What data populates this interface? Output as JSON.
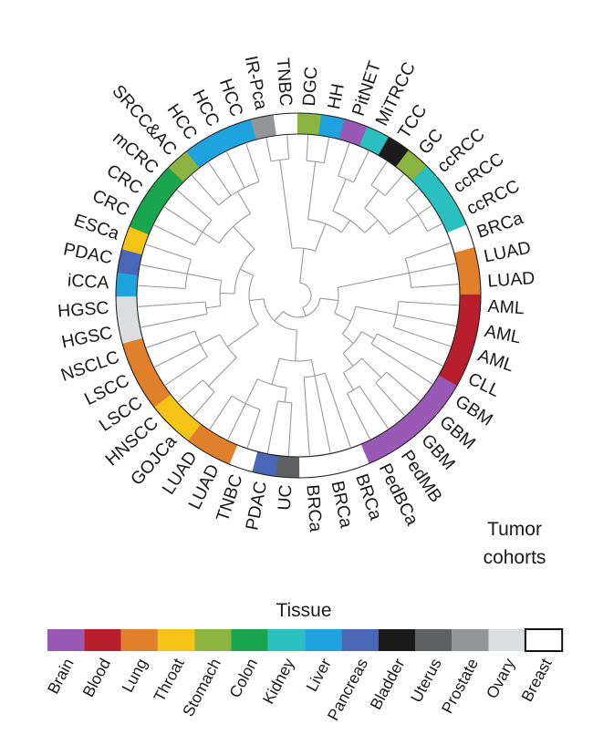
{
  "tissue_legend": {
    "title": "Tissue",
    "items": [
      {
        "name": "Brain",
        "color": "#9b59b6"
      },
      {
        "name": "Blood",
        "color": "#b81d2b"
      },
      {
        "name": "Lung",
        "color": "#e0802a"
      },
      {
        "name": "Throat",
        "color": "#f6c416"
      },
      {
        "name": "Stomach",
        "color": "#8cb440"
      },
      {
        "name": "Colon",
        "color": "#1aa64e"
      },
      {
        "name": "Kidney",
        "color": "#2bbfbf"
      },
      {
        "name": "Liver",
        "color": "#1ea3df"
      },
      {
        "name": "Pancreas",
        "color": "#4a66b6"
      },
      {
        "name": "Bladder",
        "color": "#1b1b1b"
      },
      {
        "name": "Uterus",
        "color": "#5f6062"
      },
      {
        "name": "Prostate",
        "color": "#939598"
      },
      {
        "name": "Ovary",
        "color": "#dcdddf"
      },
      {
        "name": "Breast",
        "color": "#ffffff"
      }
    ]
  },
  "ring_caption": [
    "Tumor",
    "cohorts"
  ],
  "cohorts": [
    {
      "label": "IR-Pca",
      "tissue": "Prostate"
    },
    {
      "label": "TNBC",
      "tissue": "Breast"
    },
    {
      "label": "DGC",
      "tissue": "Stomach"
    },
    {
      "label": "HH",
      "tissue": "Liver"
    },
    {
      "label": "PitNET",
      "tissue": "Brain"
    },
    {
      "label": "MiTRCC",
      "tissue": "Kidney"
    },
    {
      "label": "TCC",
      "tissue": "Bladder"
    },
    {
      "label": "GC",
      "tissue": "Stomach"
    },
    {
      "label": "ccRCC",
      "tissue": "Kidney"
    },
    {
      "label": "ccRCC",
      "tissue": "Kidney"
    },
    {
      "label": "ccRCC",
      "tissue": "Kidney"
    },
    {
      "label": "BRCa",
      "tissue": "Breast"
    },
    {
      "label": "LUAD",
      "tissue": "Lung"
    },
    {
      "label": "LUAD",
      "tissue": "Lung"
    },
    {
      "label": "AML",
      "tissue": "Blood"
    },
    {
      "label": "AML",
      "tissue": "Blood"
    },
    {
      "label": "AML",
      "tissue": "Blood"
    },
    {
      "label": "CLL",
      "tissue": "Blood"
    },
    {
      "label": "GBM",
      "tissue": "Brain"
    },
    {
      "label": "GBM",
      "tissue": "Brain"
    },
    {
      "label": "GBM",
      "tissue": "Brain"
    },
    {
      "label": "PedMB",
      "tissue": "Brain"
    },
    {
      "label": "PedBCa",
      "tissue": "Brain"
    },
    {
      "label": "BRCa",
      "tissue": "Breast"
    },
    {
      "label": "BRCa",
      "tissue": "Breast"
    },
    {
      "label": "BRCa",
      "tissue": "Breast"
    },
    {
      "label": "UC",
      "tissue": "Uterus"
    },
    {
      "label": "PDAC",
      "tissue": "Pancreas"
    },
    {
      "label": "TNBC",
      "tissue": "Breast"
    },
    {
      "label": "LUAD",
      "tissue": "Lung"
    },
    {
      "label": "LUAD",
      "tissue": "Lung"
    },
    {
      "label": "GOJCa",
      "tissue": "Throat"
    },
    {
      "label": "HNSCC",
      "tissue": "Throat"
    },
    {
      "label": "LSCC",
      "tissue": "Lung"
    },
    {
      "label": "LSCC",
      "tissue": "Lung"
    },
    {
      "label": "NSCLC",
      "tissue": "Lung"
    },
    {
      "label": "HGSC",
      "tissue": "Ovary"
    },
    {
      "label": "HGSC",
      "tissue": "Ovary"
    },
    {
      "label": "iCCA",
      "tissue": "Liver"
    },
    {
      "label": "PDAC",
      "tissue": "Pancreas"
    },
    {
      "label": "ESCa",
      "tissue": "Throat"
    },
    {
      "label": "CRC",
      "tissue": "Colon"
    },
    {
      "label": "CRC",
      "tissue": "Colon"
    },
    {
      "label": "mCRC",
      "tissue": "Colon"
    },
    {
      "label": "SRCC&AC",
      "tissue": "Stomach"
    },
    {
      "label": "HCC",
      "tissue": "Liver"
    },
    {
      "label": "HCC",
      "tissue": "Liver"
    },
    {
      "label": "HCC",
      "tissue": "Liver"
    }
  ]
}
